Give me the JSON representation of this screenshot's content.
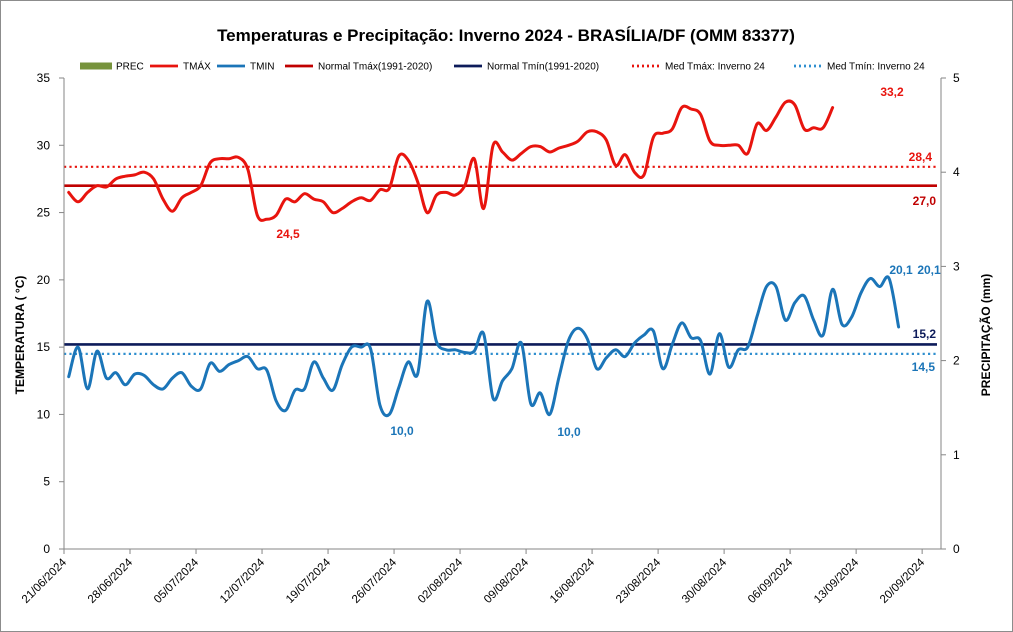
{
  "chart_data": {
    "type": "line",
    "title": "Temperaturas  e Precipitação:  Inverno 2024 - BRASÍLIA/DF (OMM 83377)",
    "ylabel": "TEMPERATURA  ( °C)",
    "y2label": "PRECIPITAÇÃO  (mm)",
    "ylim": [
      0,
      35
    ],
    "y2lim": [
      0,
      5
    ],
    "yticks": [
      "0",
      "5",
      "10",
      "15",
      "20",
      "25",
      "30",
      "35"
    ],
    "y2ticks": [
      "0",
      "1",
      "2",
      "3",
      "4",
      "5"
    ],
    "xtick_labels": [
      "21/06/2024",
      "28/06/2024",
      "05/07/2024",
      "12/07/2024",
      "19/07/2024",
      "26/07/2024",
      "02/08/2024",
      "09/08/2024",
      "16/08/2024",
      "23/08/2024",
      "30/08/2024",
      "06/09/2024",
      "13/09/2024",
      "20/09/2024"
    ],
    "legend_placement": "top",
    "grid": false,
    "series": [
      {
        "name": "PREC",
        "kind": "bar",
        "axis": "right",
        "color": "#77933c",
        "values": []
      },
      {
        "name": "TMÁX",
        "kind": "line",
        "color": "#e8140e",
        "values": [
          26.5,
          25.8,
          26.5,
          27.0,
          26.9,
          27.5,
          27.7,
          27.8,
          28.0,
          27.5,
          26.0,
          25.1,
          26.1,
          26.5,
          27.0,
          28.7,
          29.0,
          29.0,
          29.1,
          28.2,
          24.8,
          24.5,
          24.8,
          26.0,
          25.8,
          26.4,
          26.0,
          25.8,
          25.0,
          25.3,
          25.8,
          26.1,
          25.9,
          26.7,
          26.8,
          29.2,
          28.9,
          27.3,
          25.0,
          26.3,
          26.5,
          26.3,
          27.0,
          29.0,
          25.3,
          30.0,
          29.5,
          28.9,
          29.4,
          29.9,
          29.9,
          29.5,
          29.8,
          30.0,
          30.3,
          31.0,
          31.0,
          30.4,
          28.5,
          29.3,
          28.0,
          27.8,
          30.6,
          30.9,
          31.2,
          32.8,
          32.7,
          32.3,
          30.3,
          30.0,
          30.0,
          30.0,
          29.4,
          31.6,
          31.1,
          32.1,
          33.2,
          33.0,
          31.2,
          31.3,
          31.3,
          32.8
        ]
      },
      {
        "name": "TMIN",
        "kind": "line",
        "color": "#1b75b8",
        "values": [
          12.8,
          15.0,
          11.9,
          14.7,
          12.7,
          13.1,
          12.2,
          13.0,
          12.9,
          12.2,
          11.9,
          12.7,
          13.1,
          12.1,
          11.9,
          13.8,
          13.2,
          13.7,
          14.0,
          14.3,
          13.4,
          13.3,
          11.0,
          10.3,
          11.8,
          11.9,
          13.9,
          12.7,
          11.8,
          13.7,
          15.0,
          15.0,
          14.9,
          10.7,
          10.0,
          12.0,
          13.9,
          13.0,
          18.4,
          15.4,
          14.8,
          14.8,
          14.6,
          14.7,
          16.0,
          11.2,
          12.5,
          13.4,
          15.3,
          10.8,
          11.6,
          10.0,
          12.8,
          15.5,
          16.4,
          15.6,
          13.4,
          14.2,
          14.8,
          14.3,
          15.3,
          15.9,
          16.2,
          13.4,
          15.2,
          16.8,
          15.7,
          15.5,
          13.0,
          16.0,
          13.5,
          14.8,
          15.0,
          17.3,
          19.5,
          19.5,
          17.0,
          18.3,
          18.8,
          17.0,
          15.9,
          19.3,
          16.7,
          17.2,
          19.0,
          20.1,
          19.5,
          20.1,
          16.5
        ]
      },
      {
        "name": "Normal Tmáx(1991-2020)",
        "kind": "hline",
        "color": "#c00000",
        "value": 27.0
      },
      {
        "name": "Normal Tmín(1991-2020)",
        "kind": "hline",
        "color": "#0d1b5a",
        "value": 15.2
      },
      {
        "name": "Med Tmáx: Inverno 24",
        "kind": "hline-dotted",
        "color": "#e8140e",
        "value": 28.4
      },
      {
        "name": "Med Tmín: Inverno 24",
        "kind": "hline-dotted",
        "color": "#2f8fcf",
        "value": 14.5
      }
    ],
    "annotations": [
      {
        "text": "33,2",
        "color": "#e8140e"
      },
      {
        "text": "28,4",
        "color": "#e8140e"
      },
      {
        "text": "27,0",
        "color": "#c00000"
      },
      {
        "text": "24,5",
        "color": "#e8140e"
      },
      {
        "text": "20,1",
        "color": "#1b75b8"
      },
      {
        "text": "20,1",
        "color": "#1b75b8"
      },
      {
        "text": "15,2",
        "color": "#0d1b5a"
      },
      {
        "text": "14,5",
        "color": "#1b75b8"
      },
      {
        "text": "10,0",
        "color": "#1b75b8"
      },
      {
        "text": "10,0",
        "color": "#1b75b8"
      }
    ]
  }
}
